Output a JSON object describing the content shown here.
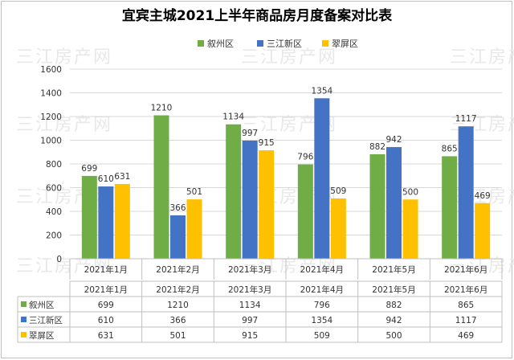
{
  "chart_data": {
    "type": "bar",
    "title": "宜宾主城2021上半年商品房月度备案对比表",
    "categories": [
      "2021年1月",
      "2021年2月",
      "2021年3月",
      "2021年4月",
      "2021年5月",
      "2021年6月"
    ],
    "series": [
      {
        "name": "叙州区",
        "color": "#70ad47",
        "values": [
          699,
          1210,
          1134,
          796,
          882,
          865
        ]
      },
      {
        "name": "三江新区",
        "color": "#4472c4",
        "values": [
          610,
          366,
          997,
          1354,
          942,
          1117
        ]
      },
      {
        "name": "翠屏区",
        "color": "#ffc000",
        "values": [
          631,
          501,
          915,
          509,
          500,
          469
        ]
      }
    ],
    "ylim": [
      0,
      1600
    ],
    "yticks": [
      0,
      200,
      400,
      600,
      800,
      1000,
      1200,
      1400,
      1600
    ],
    "grid": true,
    "legend": "top-center",
    "data_table": true
  },
  "watermark": "三江房产网"
}
